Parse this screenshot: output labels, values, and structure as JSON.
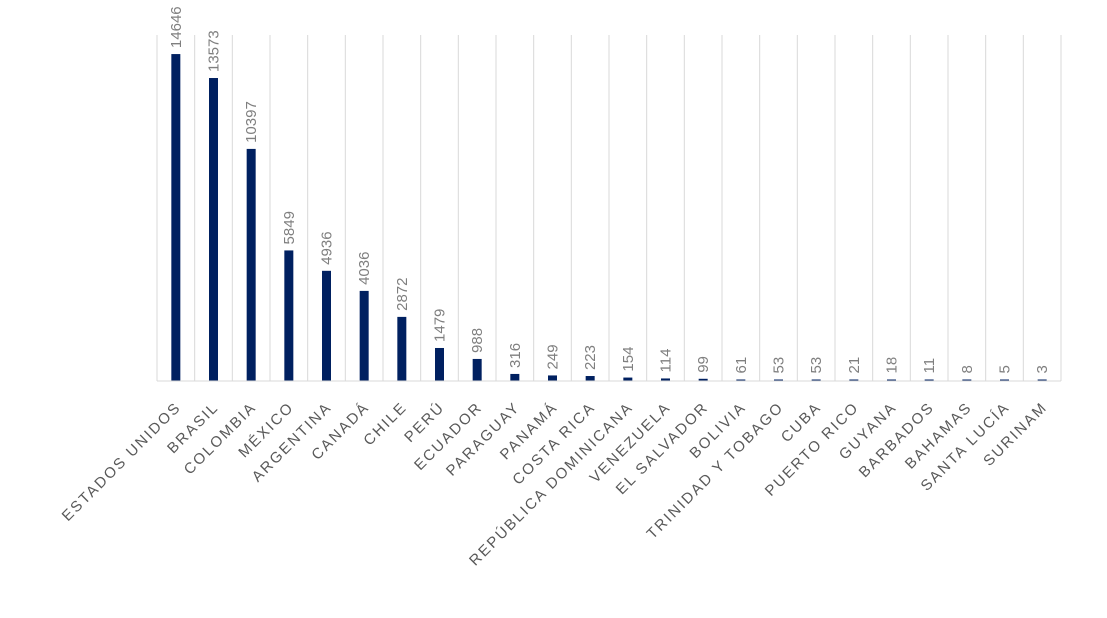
{
  "chart_data": {
    "type": "bar",
    "title": "",
    "xlabel": "",
    "ylabel": "",
    "ylim": [
      0,
      15500
    ],
    "grid": "vertical lines between categories",
    "legend": "none",
    "bar_color": "#002060",
    "label_color": "#7f7f7f",
    "grid_color": "#d9d9d9",
    "categories": [
      "ESTADOS UNIDOS",
      "BRASIL",
      "COLOMBIA",
      "MÉXICO",
      "ARGENTINA",
      "CANADÁ",
      "CHILE",
      "PERÚ",
      "ECUADOR",
      "PARAGUAY",
      "PANAMÁ",
      "COSTA RICA",
      "REPÚBLICA DOMINICANA",
      "VENEZUELA",
      "EL SALVADOR",
      "BOLIVIA",
      "TRINIDAD Y TOBAGO",
      "CUBA",
      "PUERTO RICO",
      "GUYANA",
      "BARBADOS",
      "BAHAMAS",
      "SANTA LUCÍA",
      "SURINAM"
    ],
    "values": [
      14646,
      13573,
      10397,
      5849,
      4936,
      4036,
      2872,
      1479,
      988,
      316,
      249,
      223,
      154,
      114,
      99,
      61,
      53,
      53,
      21,
      18,
      11,
      8,
      5,
      3
    ],
    "data_labels": [
      "14646",
      "13573",
      "10397",
      "5849",
      "4936",
      "4036",
      "2872",
      "1479",
      "988",
      "316",
      "249",
      "223",
      "154",
      "114",
      "99",
      "61",
      "53",
      "53",
      "21",
      "18",
      "11",
      "8",
      "5",
      "3"
    ]
  }
}
